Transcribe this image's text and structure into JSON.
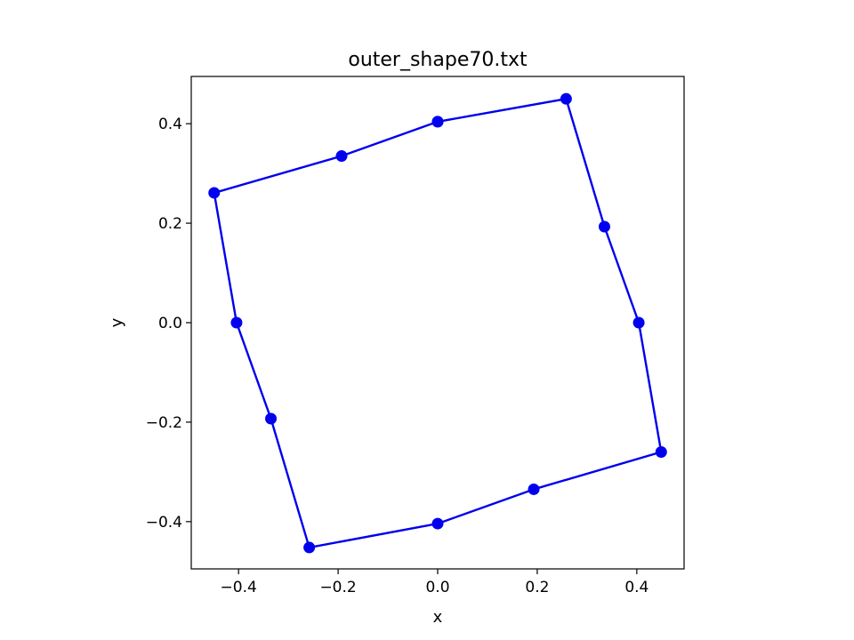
{
  "chart_data": {
    "type": "line",
    "title": "outer_shape70.txt",
    "xlabel": "x",
    "ylabel": "y",
    "xlim": [
      -0.495,
      0.495
    ],
    "ylim": [
      -0.495,
      0.495
    ],
    "xticks": [
      -0.4,
      -0.2,
      0.0,
      0.2,
      0.4
    ],
    "yticks": [
      -0.4,
      -0.2,
      0.0,
      0.2,
      0.4
    ],
    "xtick_labels": [
      "−0.4",
      "−0.2",
      "0.0",
      "0.2",
      "0.4"
    ],
    "ytick_labels": [
      "−0.4",
      "−0.2",
      "0.0",
      "0.2",
      "0.4"
    ],
    "grid": false,
    "series": [
      {
        "color": "#0000ee",
        "marker": "circle",
        "x": [
          0.0,
          0.258,
          0.335,
          0.404,
          0.449,
          0.193,
          0.0,
          -0.258,
          -0.335,
          -0.404,
          -0.449,
          -0.193,
          0.0
        ],
        "y": [
          0.404,
          0.45,
          0.193,
          0.0,
          -0.26,
          -0.335,
          -0.404,
          -0.452,
          -0.193,
          0.0,
          0.261,
          0.335,
          0.404
        ]
      }
    ]
  }
}
